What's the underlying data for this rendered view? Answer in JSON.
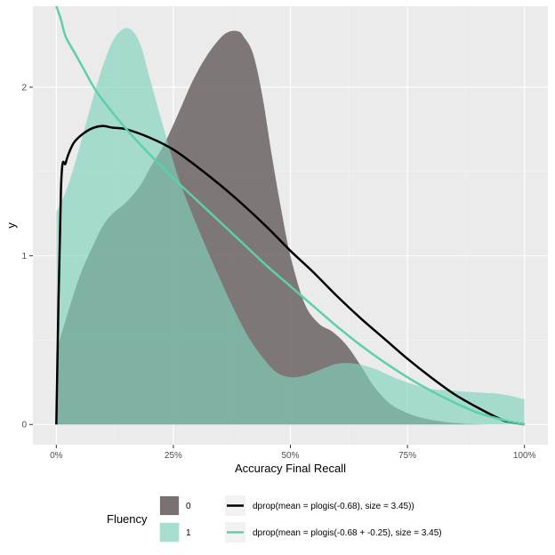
{
  "chart_data": {
    "type": "area",
    "xlabel": "Accuracy Final Recall",
    "ylabel": "y",
    "xlim": [
      0,
      1
    ],
    "ylim": [
      0,
      2.48
    ],
    "x_ticks": [
      0,
      0.25,
      0.5,
      0.75,
      1
    ],
    "x_tick_labels": [
      "0%",
      "25%",
      "50%",
      "75%",
      "100%"
    ],
    "y_ticks": [
      0,
      1,
      2
    ],
    "y_tick_labels": [
      "0",
      "1",
      "2"
    ],
    "grid": true,
    "legend_position": "bottom",
    "fill_legend": {
      "title": "Fluency",
      "entries": [
        {
          "label": "0",
          "color": "#6b6363"
        },
        {
          "label": "1",
          "color": "#7fd3bb"
        }
      ]
    },
    "line_legend": {
      "entries": [
        {
          "label": "dprop(mean = plogis(-0.68), size = 3.45))",
          "color": "#000000"
        },
        {
          "label": "dprop(mean = plogis(-0.68 + -0.25), size = 3.45)",
          "color": "#5dd0a8"
        }
      ]
    },
    "density_series": [
      {
        "name": "0",
        "color": "#6b6363",
        "opacity": 0.85,
        "x": [
          0,
          0.02,
          0.05,
          0.08,
          0.1,
          0.12,
          0.15,
          0.18,
          0.2,
          0.23,
          0.26,
          0.29,
          0.32,
          0.35,
          0.37,
          0.39,
          0.4,
          0.42,
          0.44,
          0.46,
          0.48,
          0.5,
          0.53,
          0.56,
          0.59,
          0.62,
          0.65,
          0.68,
          0.71,
          0.74,
          0.78,
          0.83,
          0.88,
          0.92
        ],
        "y": [
          0.43,
          0.62,
          0.88,
          1.07,
          1.18,
          1.25,
          1.32,
          1.42,
          1.52,
          1.66,
          1.84,
          2.03,
          2.18,
          2.29,
          2.33,
          2.33,
          2.3,
          2.2,
          1.95,
          1.6,
          1.28,
          1.0,
          0.72,
          0.6,
          0.55,
          0.47,
          0.35,
          0.22,
          0.13,
          0.08,
          0.04,
          0.015,
          0.003,
          0
        ]
      },
      {
        "name": "1",
        "color": "#7fd3bb",
        "opacity": 0.65,
        "x": [
          0,
          0.02,
          0.04,
          0.06,
          0.08,
          0.1,
          0.12,
          0.14,
          0.16,
          0.18,
          0.2,
          0.23,
          0.26,
          0.29,
          0.32,
          0.35,
          0.38,
          0.41,
          0.44,
          0.47,
          0.5,
          0.53,
          0.56,
          0.6,
          0.64,
          0.68,
          0.72,
          0.76,
          0.8,
          0.85,
          0.9,
          0.95,
          1.0
        ],
        "y": [
          1.26,
          1.38,
          1.55,
          1.75,
          1.95,
          2.13,
          2.27,
          2.34,
          2.34,
          2.25,
          2.05,
          1.75,
          1.47,
          1.25,
          1.05,
          0.86,
          0.68,
          0.52,
          0.4,
          0.31,
          0.28,
          0.29,
          0.32,
          0.36,
          0.36,
          0.33,
          0.28,
          0.24,
          0.21,
          0.2,
          0.19,
          0.18,
          0.15
        ]
      }
    ],
    "line_series": [
      {
        "name": "dprop(mean = plogis(-0.68), size = 3.45))",
        "color": "#000000",
        "x": [
          0.0,
          0.01,
          0.02,
          0.03,
          0.04,
          0.06,
          0.08,
          0.1,
          0.12,
          0.15,
          0.2,
          0.25,
          0.3,
          0.35,
          0.4,
          0.45,
          0.5,
          0.55,
          0.6,
          0.65,
          0.7,
          0.75,
          0.8,
          0.85,
          0.9,
          0.95,
          0.97,
          1.0
        ],
        "y": [
          0,
          1.4,
          1.55,
          1.63,
          1.68,
          1.73,
          1.76,
          1.77,
          1.76,
          1.75,
          1.7,
          1.63,
          1.53,
          1.42,
          1.3,
          1.17,
          1.03,
          0.9,
          0.76,
          0.63,
          0.51,
          0.39,
          0.28,
          0.18,
          0.1,
          0.03,
          0.015,
          0
        ]
      },
      {
        "name": "dprop(mean = plogis(-0.68 + -0.25), size = 3.45)",
        "color": "#5dd0a8",
        "x": [
          0.0,
          0.01,
          0.02,
          0.04,
          0.06,
          0.08,
          0.1,
          0.15,
          0.2,
          0.25,
          0.3,
          0.35,
          0.4,
          0.45,
          0.5,
          0.55,
          0.6,
          0.65,
          0.7,
          0.75,
          0.8,
          0.85,
          0.9,
          0.95,
          1.0
        ],
        "y": [
          2.48,
          2.4,
          2.3,
          2.2,
          2.1,
          2.0,
          1.92,
          1.75,
          1.6,
          1.46,
          1.33,
          1.2,
          1.07,
          0.94,
          0.82,
          0.7,
          0.58,
          0.47,
          0.37,
          0.28,
          0.2,
          0.13,
          0.07,
          0.03,
          0
        ]
      }
    ]
  }
}
